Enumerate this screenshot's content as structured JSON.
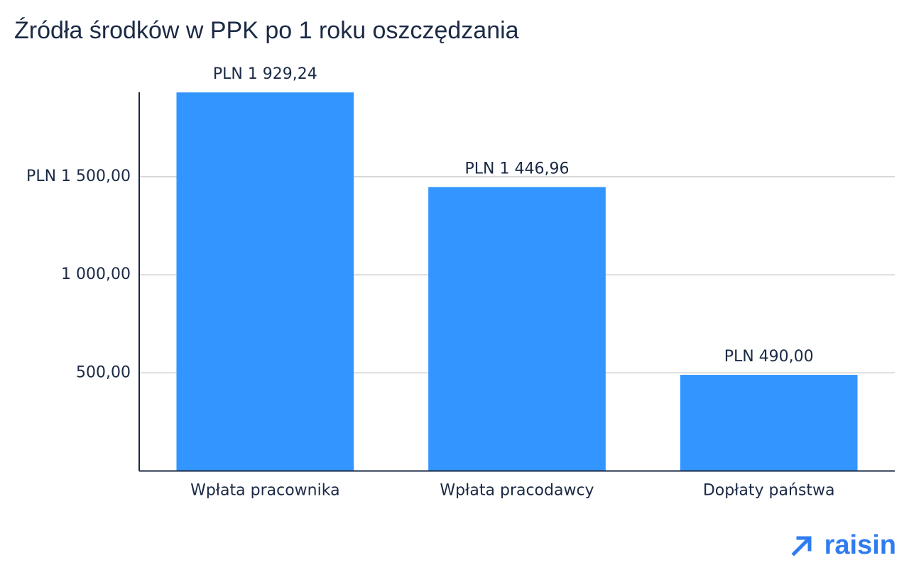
{
  "chart_data": {
    "type": "bar",
    "title": "Źródła środków w PPK po 1 roku oszczędzania",
    "categories": [
      "Wpłata pracownika",
      "Wpłata pracodawcy",
      "Dopłaty państwa"
    ],
    "values": [
      1929.24,
      1446.96,
      490.0
    ],
    "value_labels": [
      "PLN 1 929,24",
      "PLN 1 446,96",
      "PLN 490,00"
    ],
    "color": "#3395ff",
    "ylim": [
      0,
      1930
    ],
    "yticks": [
      {
        "value": 500,
        "label": "500,00"
      },
      {
        "value": 1000,
        "label": "1 000,00"
      },
      {
        "value": 1500,
        "label": "PLN 1 500,00"
      }
    ],
    "grid": true,
    "logo": "raisin"
  }
}
